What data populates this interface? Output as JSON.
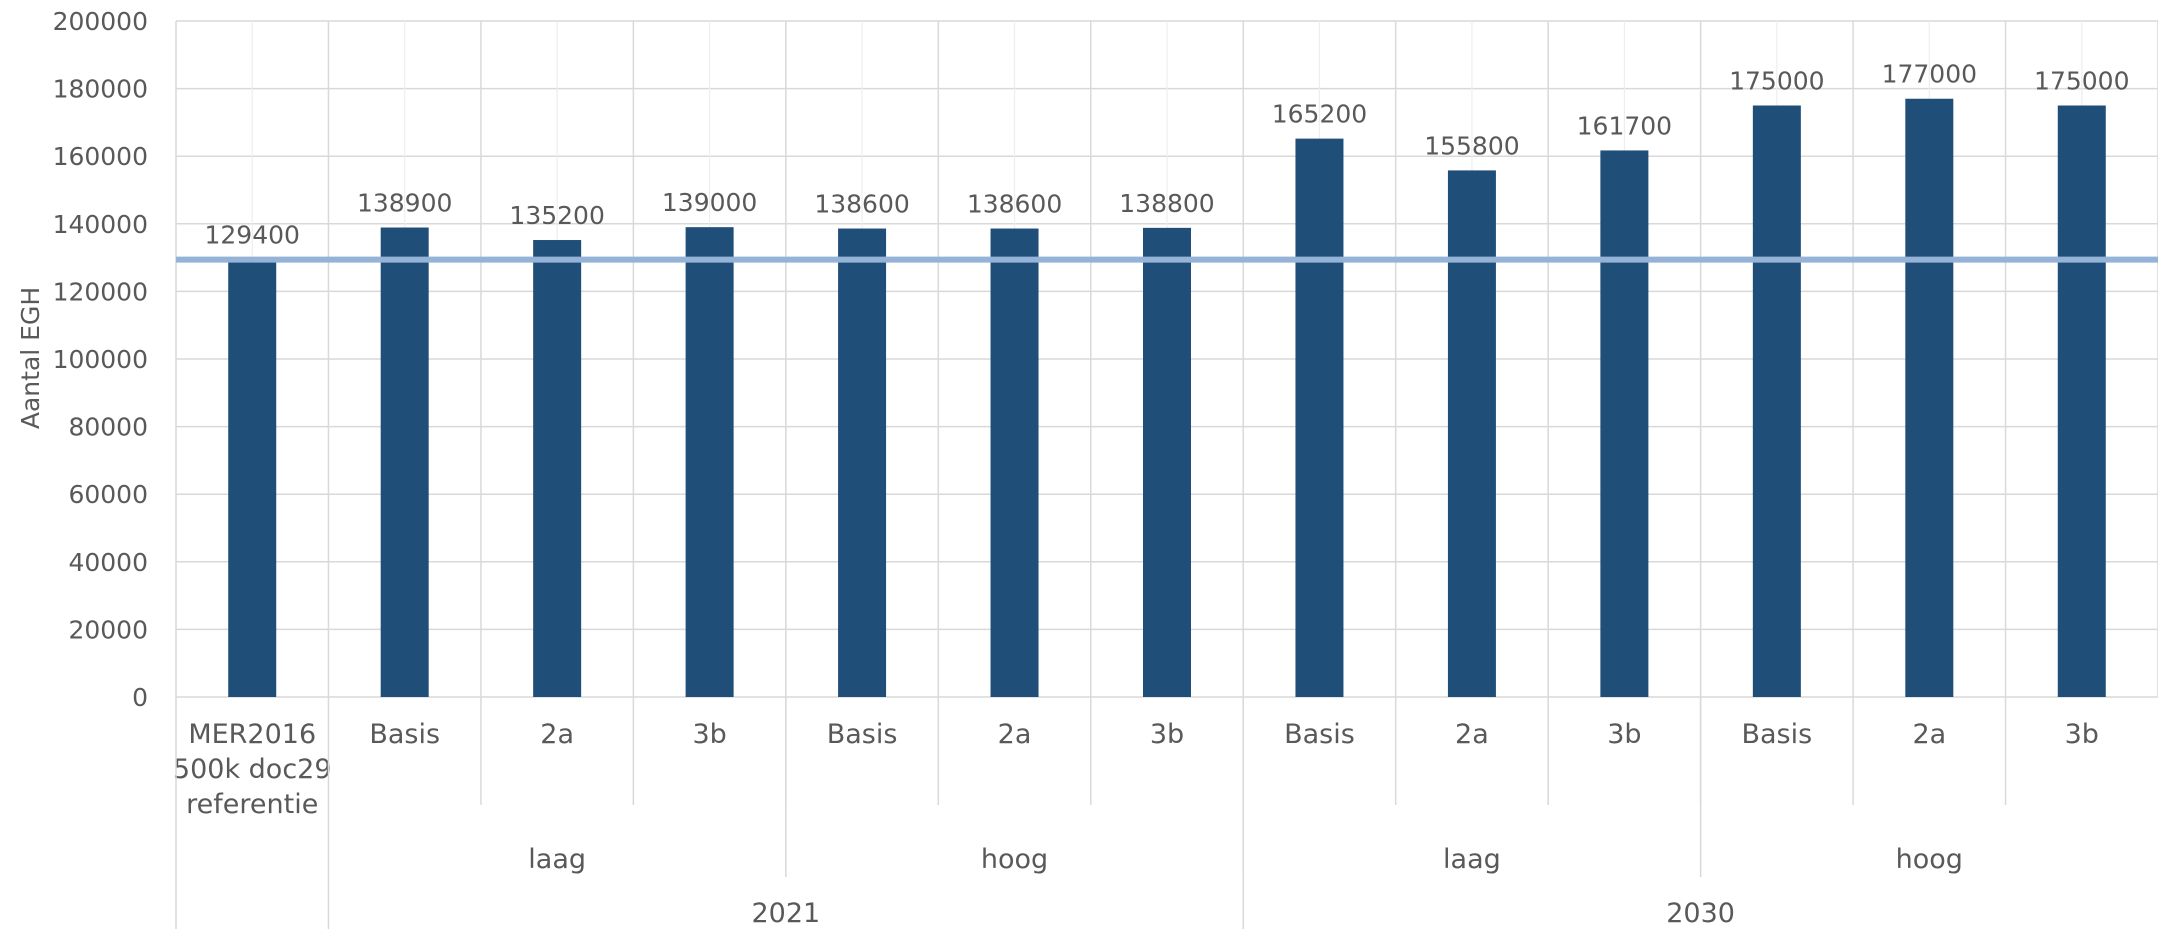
{
  "chart_data": {
    "type": "bar",
    "ylabel": "Aantal EGH",
    "ylim": [
      0,
      200000
    ],
    "ytick_step": 20000,
    "yticks": [
      "0",
      "20000",
      "40000",
      "60000",
      "80000",
      "100000",
      "120000",
      "140000",
      "160000",
      "180000",
      "200000"
    ],
    "grid": true,
    "categories": [
      [
        "MER2016",
        "500k doc29",
        "referentie"
      ],
      [
        "Basis"
      ],
      [
        "2a"
      ],
      [
        "3b"
      ],
      [
        "Basis"
      ],
      [
        "2a"
      ],
      [
        "3b"
      ],
      [
        "Basis"
      ],
      [
        "2a"
      ],
      [
        "3b"
      ],
      [
        "Basis"
      ],
      [
        "2a"
      ],
      [
        "3b"
      ]
    ],
    "values": [
      129400,
      138900,
      135200,
      139000,
      138600,
      138600,
      138800,
      165200,
      155800,
      161700,
      175000,
      177000,
      175000
    ],
    "data_labels": [
      "129400",
      "138900",
      "135200",
      "139000",
      "138600",
      "138600",
      "138800",
      "165200",
      "155800",
      "161700",
      "175000",
      "177000",
      "175000"
    ],
    "group_level1": [
      {
        "label": "laag",
        "start": 1,
        "end": 3
      },
      {
        "label": "hoog",
        "start": 4,
        "end": 6
      },
      {
        "label": "laag",
        "start": 7,
        "end": 9
      },
      {
        "label": "hoog",
        "start": 10,
        "end": 12
      }
    ],
    "group_level2": [
      {
        "label": "2021",
        "start": 1,
        "end": 6
      },
      {
        "label": "2030",
        "start": 7,
        "end": 12
      }
    ],
    "reference_line": 129400,
    "colors": {
      "bar": "#1f4e79",
      "reference_line": "#95b3d7",
      "grid": "#d9d9d9",
      "text": "#595959"
    }
  }
}
